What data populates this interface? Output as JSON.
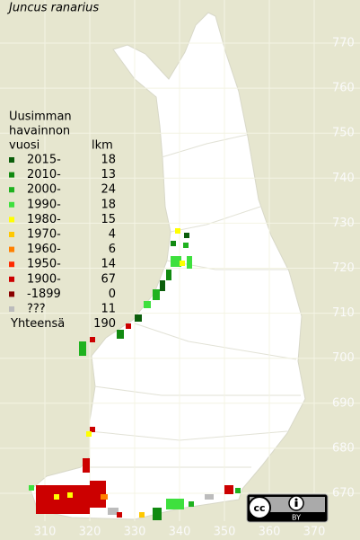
{
  "title": "Juncus ranarius",
  "legend": {
    "heading": [
      "Uusimman",
      "havainnon",
      "vuosi"
    ],
    "count_heading": "lkm",
    "rows": [
      {
        "label": "2015-",
        "count": 18,
        "color": "#0b5e0b"
      },
      {
        "label": "2010-",
        "count": 13,
        "color": "#118a11"
      },
      {
        "label": "2000-",
        "count": 24,
        "color": "#1fb21f"
      },
      {
        "label": "1990-",
        "count": 18,
        "color": "#3ee03e"
      },
      {
        "label": "1980-",
        "count": 15,
        "color": "#ffff00"
      },
      {
        "label": "1970-",
        "count": 4,
        "color": "#ffc800"
      },
      {
        "label": "1960-",
        "count": 6,
        "color": "#ff8000"
      },
      {
        "label": "1950-",
        "count": 14,
        "color": "#ff2a00"
      },
      {
        "label": "1900-",
        "count": 67,
        "color": "#cc0000"
      },
      {
        "label": "-1899",
        "count": 0,
        "color": "#8a0000"
      },
      {
        "label": "???",
        "count": 11,
        "color": "#bcbcbc"
      }
    ],
    "total": {
      "label": "Yhteensä",
      "count": 190
    }
  },
  "grid": {
    "x_labels": [
      "310",
      "320",
      "330",
      "340",
      "350",
      "360",
      "370"
    ],
    "y_labels": [
      "770",
      "760",
      "750",
      "740",
      "730",
      "720",
      "710",
      "700",
      "690",
      "680",
      "670"
    ]
  },
  "badge": {
    "by": "BY"
  }
}
